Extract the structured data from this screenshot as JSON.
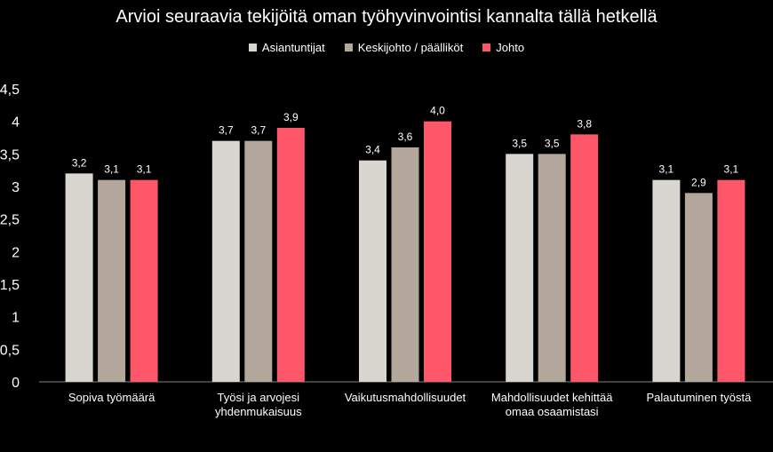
{
  "chart_data": {
    "type": "bar",
    "title": "Arvioi seuraavia tekijöitä oman työhyvinvointisi kannalta tällä hetkellä",
    "categories": [
      [
        "Sopiva työmäärä"
      ],
      [
        "Työsi ja arvojesi",
        "yhdenmukaisuus"
      ],
      [
        "Vaikutusmahdollisuudet"
      ],
      [
        "Mahdollisuudet kehittää",
        "omaa osaamistasi"
      ],
      [
        "Palautuminen työstä"
      ]
    ],
    "series": [
      {
        "name": "Asiantuntijat",
        "color": "#d9d5cf",
        "values": [
          3.2,
          3.7,
          3.4,
          3.5,
          3.1
        ],
        "labels": [
          "3,2",
          "3,7",
          "3,4",
          "3,5",
          "3,1"
        ]
      },
      {
        "name": "Keskijohto / päälliköt",
        "color": "#b3a69b",
        "values": [
          3.1,
          3.7,
          3.6,
          3.5,
          2.9
        ],
        "labels": [
          "3,1",
          "3,7",
          "3,6",
          "3,5",
          "2,9"
        ]
      },
      {
        "name": "Johto",
        "color": "#fd5769",
        "values": [
          3.1,
          3.9,
          4.0,
          3.8,
          3.1
        ],
        "labels": [
          "3,1",
          "3,9",
          "4,0",
          "3,8",
          "3,1"
        ]
      }
    ],
    "ylim": [
      0,
      4.5
    ],
    "yticks": [
      0,
      0.5,
      1,
      1.5,
      2,
      2.5,
      3,
      3.5,
      4,
      4.5
    ],
    "ytick_labels": [
      "0",
      "0,5",
      "1",
      "1,5",
      "2",
      "2,5",
      "3",
      "3,5",
      "4",
      "4,5"
    ],
    "legend_position": "top-center",
    "grid": false
  }
}
